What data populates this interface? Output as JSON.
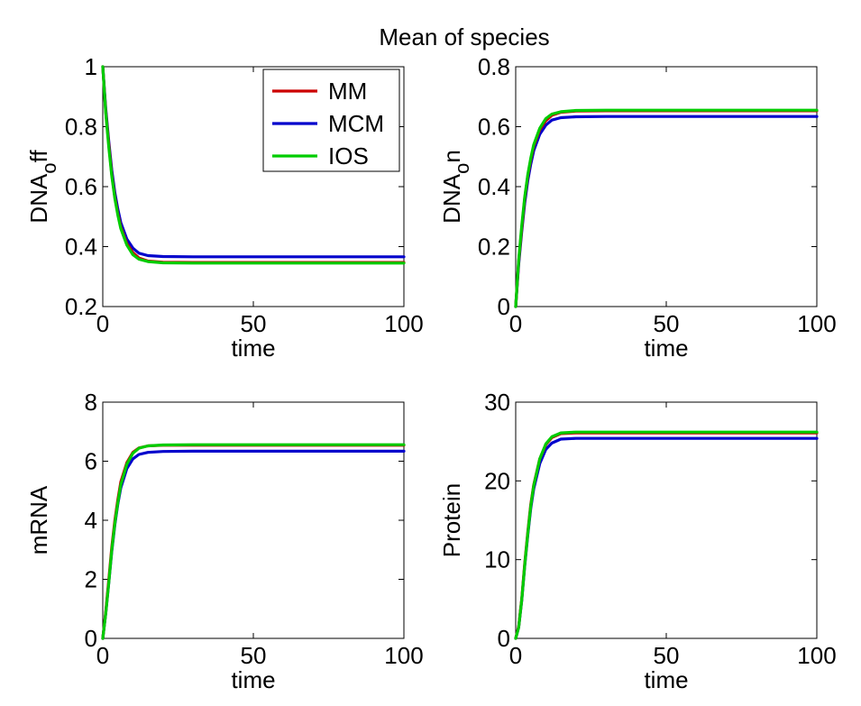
{
  "figure": {
    "title": "Mean of species"
  },
  "colors": {
    "MM": "#cc0000",
    "MCM": "#0000cc",
    "IOS": "#00cc00"
  },
  "chart_data": [
    {
      "type": "line",
      "xlabel": "time",
      "ylabel": "DNA_off",
      "ylabel_parts": [
        "DNA",
        "o",
        "ff"
      ],
      "xlim": [
        0,
        100
      ],
      "ylim": [
        0.2,
        1
      ],
      "xticks": [
        "0",
        "50",
        "100"
      ],
      "yticks": [
        "0.2",
        "0.4",
        "0.6",
        "0.8",
        "1"
      ],
      "legend": {
        "entries": [
          "MM",
          "MCM",
          "IOS"
        ],
        "position": "top-right"
      },
      "grid": false,
      "series": [
        {
          "name": "MM",
          "x": [
            0,
            1,
            2,
            3,
            4,
            5,
            6,
            8,
            10,
            12,
            15,
            20,
            30,
            50,
            100
          ],
          "y": [
            1.0,
            0.85,
            0.74,
            0.64,
            0.565,
            0.51,
            0.465,
            0.41,
            0.38,
            0.362,
            0.352,
            0.348,
            0.347,
            0.347,
            0.347
          ]
        },
        {
          "name": "MCM",
          "x": [
            0,
            1,
            2,
            3,
            4,
            5,
            6,
            8,
            10,
            12,
            15,
            20,
            30,
            50,
            100
          ],
          "y": [
            1.0,
            0.86,
            0.75,
            0.655,
            0.58,
            0.525,
            0.48,
            0.425,
            0.395,
            0.378,
            0.37,
            0.367,
            0.366,
            0.366,
            0.366
          ]
        },
        {
          "name": "IOS",
          "x": [
            0,
            1,
            2,
            3,
            4,
            5,
            6,
            8,
            10,
            12,
            15,
            20,
            30,
            50,
            100
          ],
          "y": [
            1.0,
            0.845,
            0.73,
            0.635,
            0.56,
            0.505,
            0.46,
            0.405,
            0.373,
            0.358,
            0.35,
            0.346,
            0.345,
            0.345,
            0.345
          ]
        }
      ]
    },
    {
      "type": "line",
      "xlabel": "time",
      "ylabel": "DNA_on",
      "ylabel_parts": [
        "DNA",
        "o",
        "n"
      ],
      "xlim": [
        0,
        100
      ],
      "ylim": [
        0,
        0.8
      ],
      "xticks": [
        "0",
        "50",
        "100"
      ],
      "yticks": [
        "0",
        "0.2",
        "0.4",
        "0.6",
        "0.8"
      ],
      "grid": false,
      "series": [
        {
          "name": "MM",
          "x": [
            0,
            1,
            2,
            3,
            4,
            5,
            6,
            8,
            10,
            12,
            15,
            20,
            30,
            50,
            100
          ],
          "y": [
            0,
            0.15,
            0.26,
            0.36,
            0.435,
            0.49,
            0.535,
            0.59,
            0.62,
            0.638,
            0.648,
            0.652,
            0.653,
            0.653,
            0.653
          ]
        },
        {
          "name": "MCM",
          "x": [
            0,
            1,
            2,
            3,
            4,
            5,
            6,
            8,
            10,
            12,
            15,
            20,
            30,
            50,
            100
          ],
          "y": [
            0,
            0.14,
            0.25,
            0.345,
            0.42,
            0.475,
            0.52,
            0.575,
            0.605,
            0.622,
            0.63,
            0.633,
            0.634,
            0.634,
            0.634
          ]
        },
        {
          "name": "IOS",
          "x": [
            0,
            1,
            2,
            3,
            4,
            5,
            6,
            8,
            10,
            12,
            15,
            20,
            30,
            50,
            100
          ],
          "y": [
            0,
            0.155,
            0.27,
            0.365,
            0.44,
            0.495,
            0.54,
            0.595,
            0.627,
            0.642,
            0.65,
            0.654,
            0.655,
            0.655,
            0.655
          ]
        }
      ]
    },
    {
      "type": "line",
      "xlabel": "time",
      "ylabel": "mRNA",
      "xlim": [
        0,
        100
      ],
      "ylim": [
        0,
        8
      ],
      "xticks": [
        "0",
        "50",
        "100"
      ],
      "yticks": [
        "0",
        "2",
        "4",
        "6",
        "8"
      ],
      "grid": false,
      "series": [
        {
          "name": "MM",
          "x": [
            0,
            1,
            2,
            3,
            4,
            5,
            6,
            8,
            10,
            12,
            15,
            20,
            30,
            50,
            100
          ],
          "y": [
            0,
            0.9,
            2.0,
            3.1,
            4.0,
            4.7,
            5.3,
            5.95,
            6.3,
            6.45,
            6.52,
            6.54,
            6.54,
            6.54,
            6.54
          ]
        },
        {
          "name": "MCM",
          "x": [
            0,
            1,
            2,
            3,
            4,
            5,
            6,
            8,
            10,
            12,
            15,
            20,
            30,
            50,
            100
          ],
          "y": [
            0,
            0.85,
            1.9,
            2.95,
            3.85,
            4.55,
            5.1,
            5.75,
            6.08,
            6.23,
            6.3,
            6.33,
            6.34,
            6.34,
            6.34
          ]
        },
        {
          "name": "IOS",
          "x": [
            0,
            1,
            2,
            3,
            4,
            5,
            6,
            8,
            10,
            12,
            15,
            20,
            30,
            50,
            100
          ],
          "y": [
            0,
            0.85,
            1.9,
            3.0,
            3.9,
            4.6,
            5.2,
            5.9,
            6.27,
            6.44,
            6.52,
            6.55,
            6.56,
            6.56,
            6.56
          ]
        }
      ]
    },
    {
      "type": "line",
      "xlabel": "time",
      "ylabel": "Protein",
      "xlim": [
        0,
        100
      ],
      "ylim": [
        0,
        30
      ],
      "xticks": [
        "0",
        "50",
        "100"
      ],
      "yticks": [
        "0",
        "10",
        "20",
        "30"
      ],
      "grid": false,
      "series": [
        {
          "name": "MM",
          "x": [
            0,
            1,
            2,
            3,
            4,
            5,
            6,
            8,
            10,
            12,
            15,
            20,
            30,
            50,
            100
          ],
          "y": [
            0,
            1.5,
            5.0,
            9.5,
            13.5,
            17.0,
            19.5,
            22.8,
            24.6,
            25.5,
            26.0,
            26.1,
            26.1,
            26.1,
            26.1
          ]
        },
        {
          "name": "MCM",
          "x": [
            0,
            1,
            2,
            3,
            4,
            5,
            6,
            8,
            10,
            12,
            15,
            20,
            30,
            50,
            100
          ],
          "y": [
            0,
            1.4,
            4.8,
            9.2,
            13.1,
            16.5,
            19.0,
            22.2,
            24.0,
            24.8,
            25.3,
            25.4,
            25.4,
            25.4,
            25.4
          ]
        },
        {
          "name": "IOS",
          "x": [
            0,
            1,
            2,
            3,
            4,
            5,
            6,
            8,
            10,
            12,
            15,
            20,
            30,
            50,
            100
          ],
          "y": [
            0,
            1.4,
            4.9,
            9.3,
            13.3,
            16.8,
            19.4,
            22.8,
            24.7,
            25.6,
            26.1,
            26.2,
            26.2,
            26.2,
            26.2
          ]
        }
      ]
    }
  ]
}
